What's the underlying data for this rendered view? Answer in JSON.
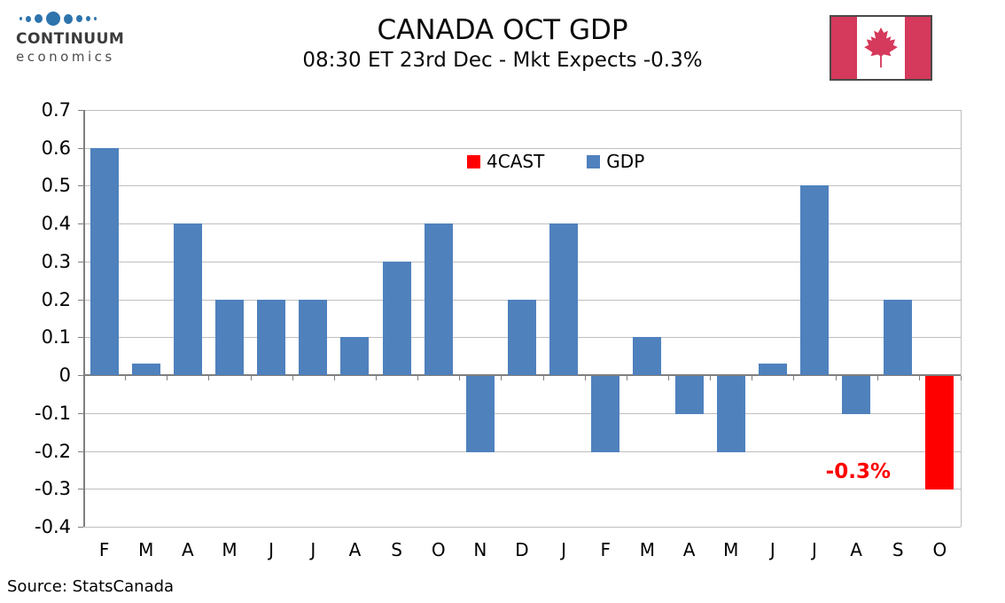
{
  "logo": {
    "brand": "CONTINUUM",
    "sub": "economics"
  },
  "source": {
    "label": "Source: StatsCanada"
  },
  "colors": {
    "bar_blue": "#4F81BD",
    "bar_red": "#FF0000",
    "gridline": "#BFBFBF",
    "axis": "#7F7F7F",
    "flag_red": "#D5395B",
    "logo_blue": "#2E74AD",
    "annotation_red": "#FF0000"
  },
  "chart_data": {
    "type": "bar",
    "title": "CANADA OCT GDP",
    "subtitle": "08:30 ET 23rd Dec - Mkt Expects -0.3%",
    "categories": [
      "F",
      "M",
      "A",
      "M",
      "J",
      "J",
      "A",
      "S",
      "O",
      "N",
      "D",
      "J",
      "F",
      "M",
      "A",
      "M",
      "J",
      "J",
      "A",
      "S",
      "O"
    ],
    "series": [
      {
        "name": "4CAST",
        "color": "#FF0000",
        "values": [
          null,
          null,
          null,
          null,
          null,
          null,
          null,
          null,
          null,
          null,
          null,
          null,
          null,
          null,
          null,
          null,
          null,
          null,
          null,
          null,
          -0.3
        ]
      },
      {
        "name": "GDP",
        "color": "#4F81BD",
        "values": [
          0.6,
          0.03,
          0.4,
          0.2,
          0.2,
          0.2,
          0.1,
          0.3,
          0.4,
          -0.2,
          0.2,
          0.4,
          -0.2,
          0.1,
          -0.1,
          -0.2,
          0.03,
          0.5,
          -0.1,
          0.2,
          null
        ]
      }
    ],
    "ylim": [
      -0.4,
      0.7
    ],
    "ytick_step": 0.1,
    "grid": true,
    "legend_position": "top-center",
    "annotation": {
      "text": "-0.3%",
      "color": "#FF0000"
    },
    "xlabel": "",
    "ylabel": ""
  }
}
